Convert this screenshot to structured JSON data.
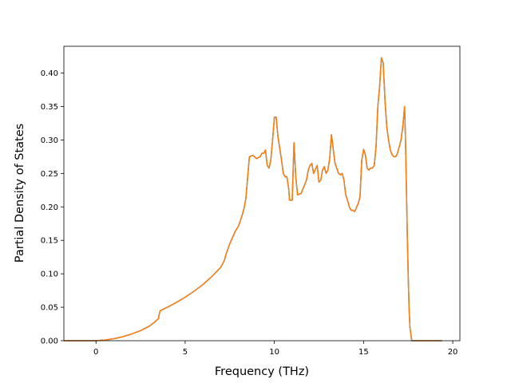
{
  "chart_data": {
    "type": "line",
    "title": "",
    "xlabel": "Frequency (THz)",
    "ylabel": "Partial Density of States",
    "xlim": [
      -1.8,
      20.4
    ],
    "ylim": [
      0.0,
      0.44
    ],
    "xticks": [
      0,
      5,
      10,
      15,
      20
    ],
    "yticks": [
      0.0,
      0.05,
      0.1,
      0.15,
      0.2,
      0.25,
      0.3,
      0.35,
      0.4
    ],
    "xtick_labels": [
      "0",
      "5",
      "10",
      "15",
      "20"
    ],
    "ytick_labels": [
      "0.00",
      "0.05",
      "0.10",
      "0.15",
      "0.20",
      "0.25",
      "0.30",
      "0.35",
      "0.40"
    ],
    "grid": false,
    "series_colors": [
      "#1f77b4",
      "#ff7f0e"
    ],
    "series": [
      {
        "x": [
          -1.8,
          -1.0,
          0.0,
          0.5,
          1.0,
          1.5,
          2.0,
          2.5,
          3.0,
          3.3,
          3.5,
          3.55,
          3.6,
          4.0,
          4.5,
          5.0,
          5.5,
          6.0,
          6.5,
          7.0,
          7.2,
          7.3,
          7.5,
          7.8,
          8.0,
          8.2,
          8.3,
          8.4,
          8.6,
          8.8,
          9.0,
          9.2,
          9.3,
          9.4,
          9.5,
          9.6,
          9.7,
          9.8,
          9.9,
          10.0,
          10.1,
          10.2,
          10.4,
          10.5,
          10.6,
          10.7,
          10.8,
          10.85,
          11.0,
          11.1,
          11.2,
          11.3,
          11.5,
          11.8,
          11.9,
          12.0,
          12.1,
          12.2,
          12.4,
          12.5,
          12.6,
          12.7,
          12.8,
          12.9,
          13.0,
          13.1,
          13.2,
          13.4,
          13.6,
          13.7,
          13.8,
          13.9,
          14.0,
          14.1,
          14.2,
          14.3,
          14.4,
          14.5,
          14.7,
          14.8,
          14.9,
          15.0,
          15.1,
          15.2,
          15.3,
          15.4,
          15.5,
          15.6,
          15.7,
          15.8,
          15.9,
          16.0,
          16.1,
          16.2,
          16.3,
          16.4,
          16.5,
          16.6,
          16.7,
          16.8,
          16.9,
          17.0,
          17.1,
          17.2,
          17.3,
          17.35,
          17.45,
          17.5,
          17.55,
          17.6,
          17.7,
          17.8,
          19.4
        ],
        "values": [
          0.0,
          0.0,
          0.0,
          0.001,
          0.003,
          0.006,
          0.01,
          0.015,
          0.022,
          0.028,
          0.033,
          0.04,
          0.045,
          0.05,
          0.057,
          0.065,
          0.074,
          0.084,
          0.096,
          0.11,
          0.12,
          0.13,
          0.145,
          0.163,
          0.172,
          0.188,
          0.198,
          0.212,
          0.275,
          0.277,
          0.272,
          0.275,
          0.28,
          0.28,
          0.285,
          0.262,
          0.258,
          0.27,
          0.3,
          0.334,
          0.334,
          0.305,
          0.27,
          0.25,
          0.245,
          0.245,
          0.228,
          0.21,
          0.21,
          0.296,
          0.245,
          0.218,
          0.22,
          0.24,
          0.255,
          0.262,
          0.265,
          0.25,
          0.262,
          0.237,
          0.24,
          0.255,
          0.26,
          0.25,
          0.255,
          0.272,
          0.308,
          0.265,
          0.25,
          0.248,
          0.25,
          0.24,
          0.218,
          0.21,
          0.2,
          0.195,
          0.195,
          0.193,
          0.205,
          0.215,
          0.27,
          0.286,
          0.278,
          0.258,
          0.255,
          0.258,
          0.258,
          0.262,
          0.29,
          0.35,
          0.38,
          0.423,
          0.415,
          0.36,
          0.32,
          0.3,
          0.285,
          0.278,
          0.275,
          0.275,
          0.28,
          0.29,
          0.3,
          0.32,
          0.35,
          0.3,
          0.16,
          0.1,
          0.05,
          0.02,
          0.0,
          0.0,
          0.0
        ]
      }
    ]
  }
}
